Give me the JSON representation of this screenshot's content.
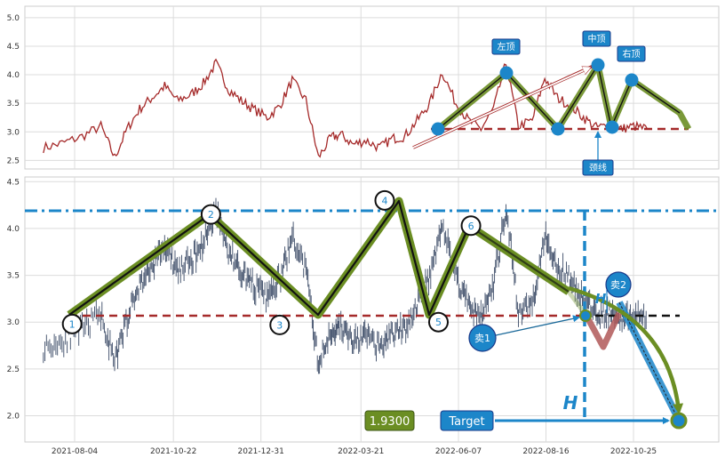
{
  "chart_data": [
    {
      "type": "line",
      "title": "",
      "xlabel": "",
      "ylabel": "",
      "ylim": [
        2.35,
        5.2
      ],
      "yticks": [
        "2.5",
        "3.0",
        "3.5",
        "4.0",
        "4.5",
        "5.0"
      ],
      "grid": true,
      "series": [
        {
          "x": [
            "2021-07-10",
            "2021-07-25",
            "2021-08-10",
            "2021-08-25",
            "2021-09-05",
            "2021-09-15",
            "2021-09-25",
            "2021-10-05",
            "2021-10-15",
            "2021-10-25",
            "2021-11-05",
            "2021-11-15",
            "2021-11-25",
            "2021-12-05",
            "2021-12-15",
            "2021-12-25",
            "2022-01-05",
            "2022-01-15",
            "2022-01-25",
            "2022-02-05",
            "2022-02-15",
            "2022-02-25",
            "2022-03-05",
            "2022-03-15",
            "2022-03-25",
            "2022-04-05",
            "2022-04-15",
            "2022-04-25",
            "2022-05-05",
            "2022-05-15",
            "2022-05-25",
            "2022-06-05",
            "2022-06-15",
            "2022-06-25",
            "2022-07-05",
            "2022-07-15",
            "2022-07-25",
            "2022-08-05",
            "2022-08-15",
            "2022-08-25",
            "2022-09-05",
            "2022-09-15",
            "2022-09-25",
            "2022-10-05",
            "2022-10-15",
            "2022-10-25",
            "2022-11-05"
          ],
          "values": [
            2.72,
            2.8,
            2.92,
            3.1,
            2.55,
            3.05,
            3.4,
            3.6,
            3.8,
            3.55,
            3.65,
            3.85,
            4.2,
            3.75,
            3.55,
            3.4,
            3.25,
            3.45,
            3.9,
            3.55,
            2.55,
            2.9,
            2.95,
            2.78,
            2.85,
            2.72,
            2.88,
            2.92,
            3.2,
            3.5,
            4.05,
            3.5,
            3.2,
            3.05,
            3.4,
            4.2,
            3.1,
            3.2,
            3.95,
            3.6,
            3.45,
            3.25,
            3.08,
            3.1,
            3.05,
            3.1,
            3.05
          ]
        }
      ],
      "annotations": [
        {
          "text": "左顶"
        },
        {
          "text": "中顶"
        },
        {
          "text": "右顶"
        },
        {
          "text": "颈线"
        }
      ]
    },
    {
      "type": "line",
      "title": "",
      "xlabel": "",
      "ylabel": "",
      "ylim": [
        1.72,
        4.55
      ],
      "yticks": [
        "2.0",
        "2.5",
        "3.0",
        "3.5",
        "4.0",
        "4.5"
      ],
      "xticks": [
        "2021-08-04",
        "2021-10-22",
        "2021-12-31",
        "2022-03-21",
        "2022-06-07",
        "2022-08-16",
        "2022-10-25"
      ],
      "grid": true,
      "reference_lines": {
        "upper": 4.19,
        "neckline": 3.07
      },
      "pivot_points": [
        {
          "label": "1",
          "x": "2021-08-02",
          "y": 2.98
        },
        {
          "label": "2",
          "x": "2021-11-21",
          "y": 4.15
        },
        {
          "label": "3",
          "x": "2022-01-15",
          "y": 2.97
        },
        {
          "label": "4",
          "x": "2022-04-09",
          "y": 4.3
        },
        {
          "label": "5",
          "x": "2022-05-22",
          "y": 3.0
        },
        {
          "label": "6",
          "x": "2022-06-17",
          "y": 4.03
        }
      ],
      "annotations": [
        {
          "text": "卖1"
        },
        {
          "text": "卖2"
        },
        {
          "text": "H"
        },
        {
          "text": "H"
        },
        {
          "text": "Target"
        },
        {
          "text": "1.9300"
        }
      ]
    }
  ],
  "colors": {
    "price_line_top": "#a52a2a",
    "price_bars_bottom": "#3b4a66",
    "pattern_green": "#6b8e23",
    "dashed_red": "#a52a2a",
    "accent_blue": "#1c86c9"
  }
}
